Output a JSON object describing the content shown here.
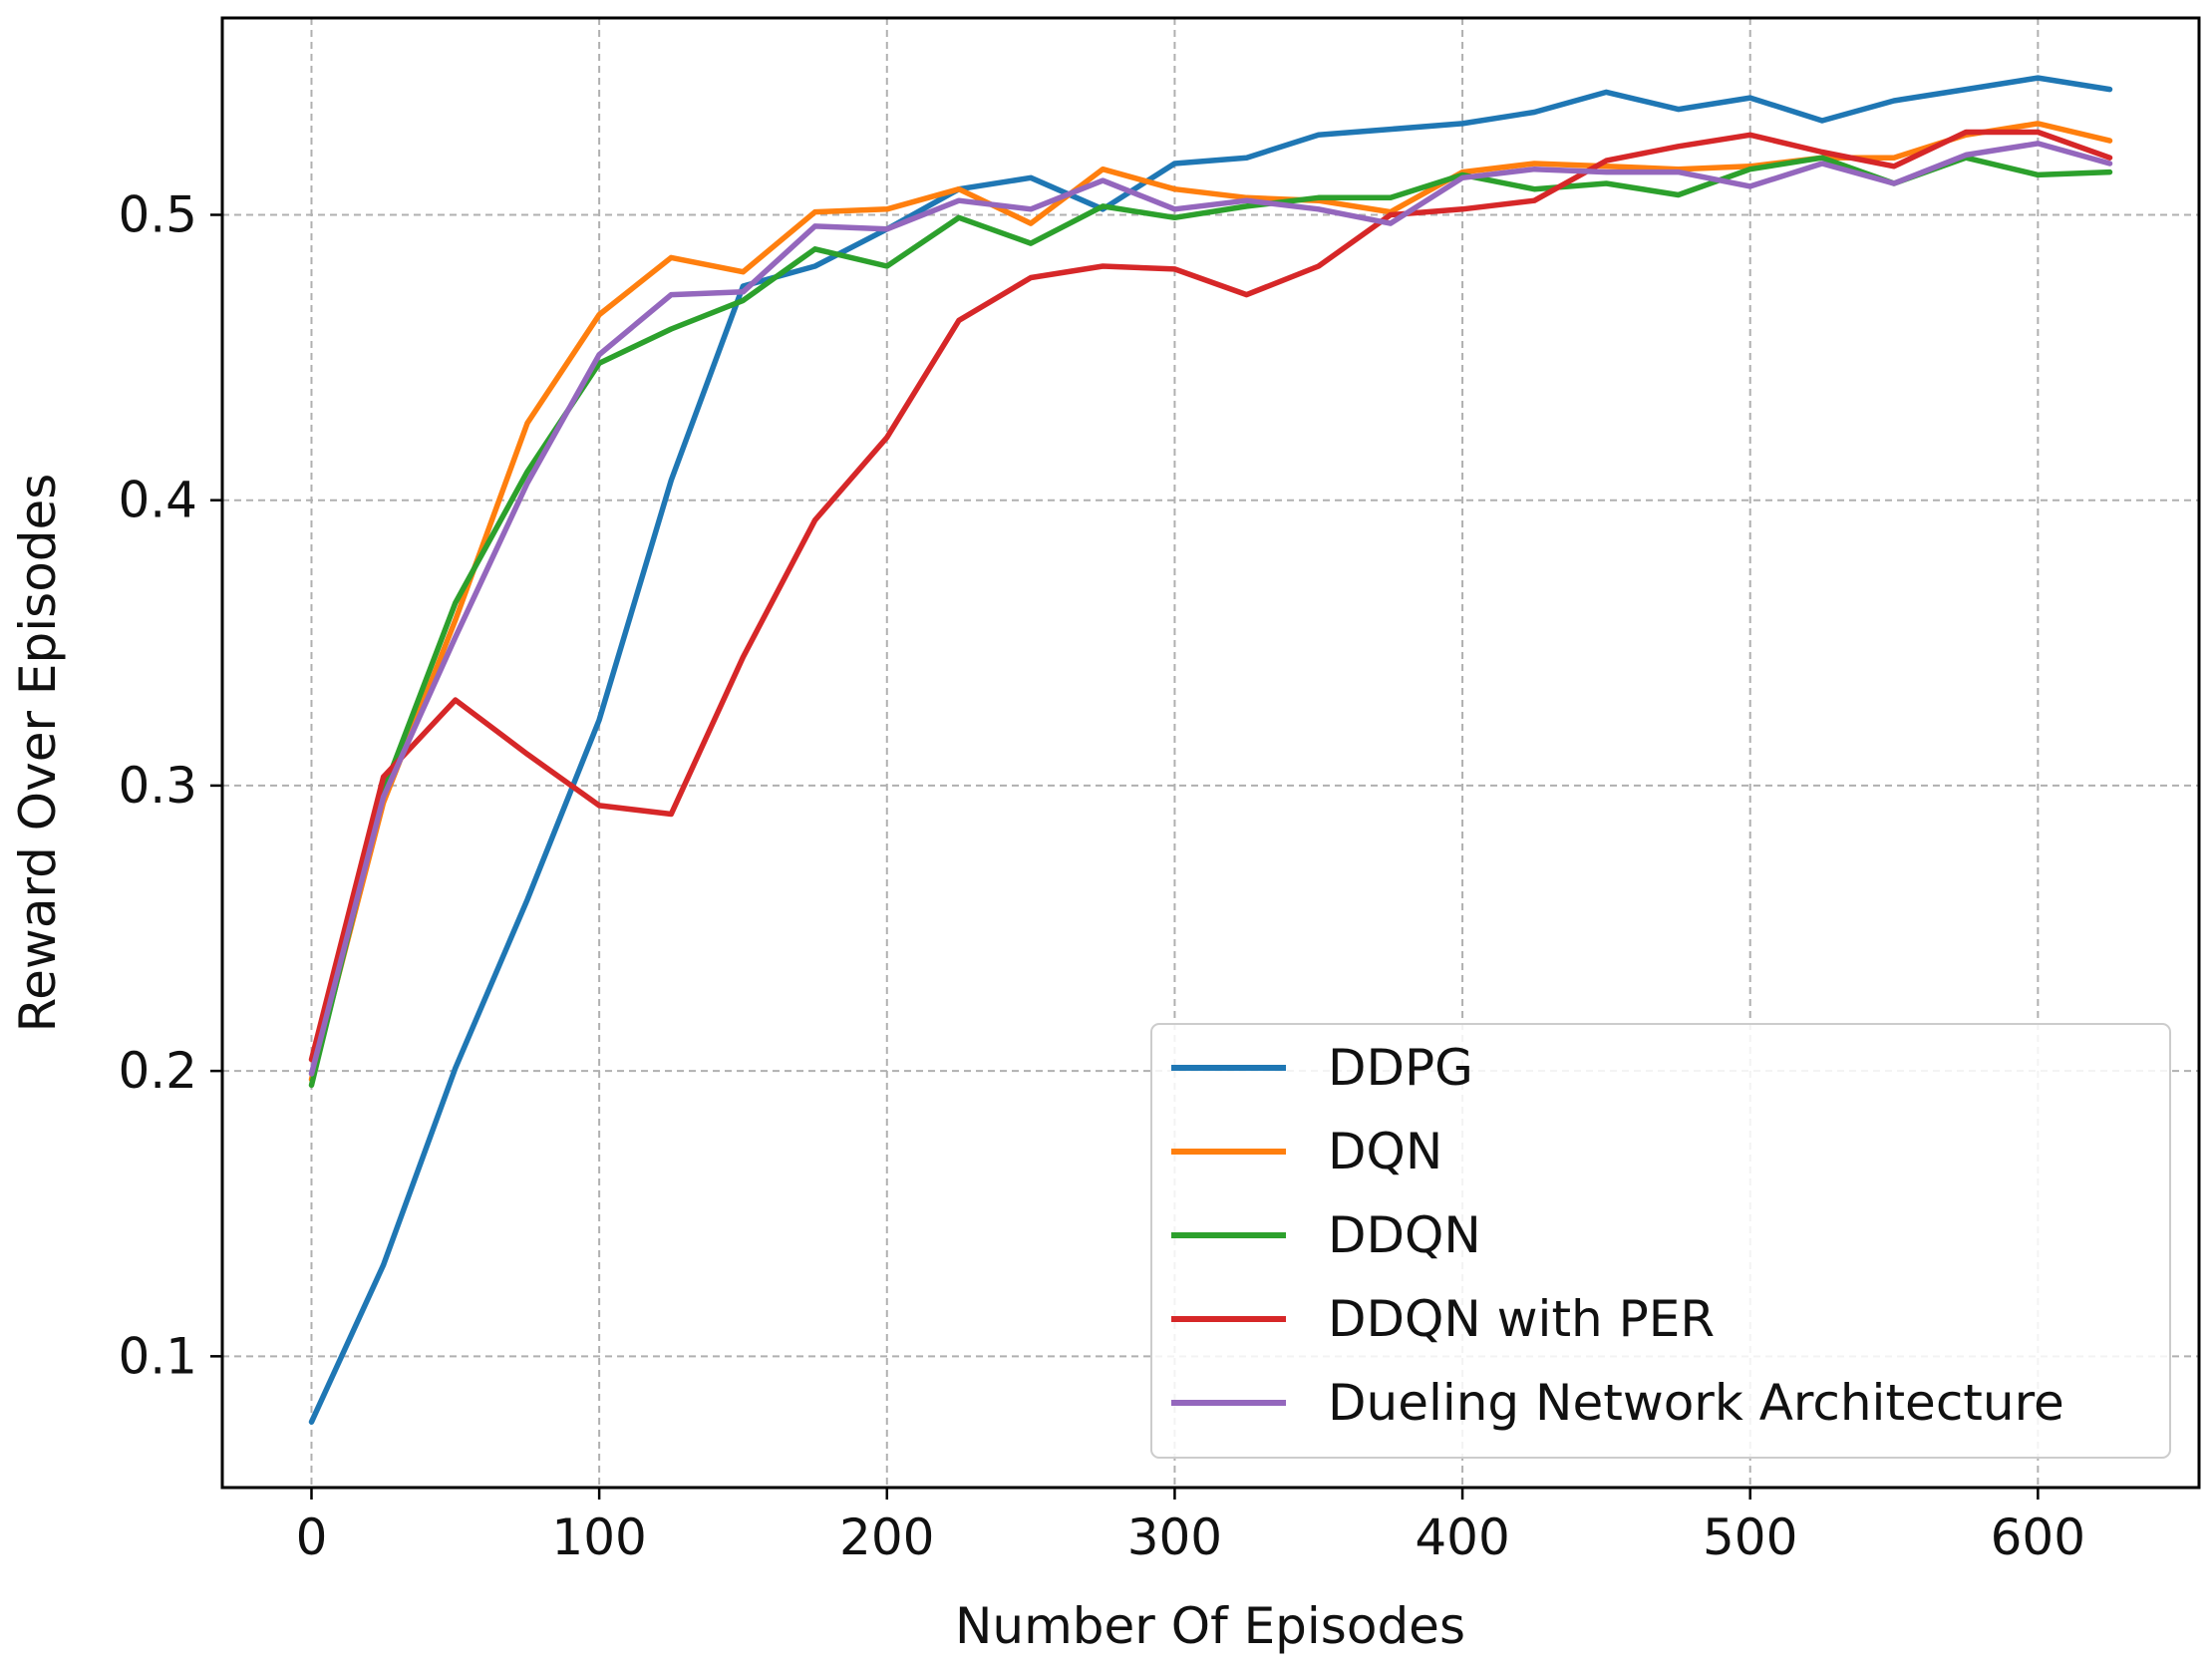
{
  "chart_data": {
    "type": "line",
    "title": "",
    "xlabel": "Number Of Episodes",
    "ylabel": "Reward Over Episodes",
    "xlim": [
      -31,
      656
    ],
    "ylim": [
      0.054,
      0.569
    ],
    "xticks": [
      0,
      100,
      200,
      300,
      400,
      500,
      600
    ],
    "xtick_labels": [
      "0",
      "100",
      "200",
      "300",
      "400",
      "500",
      "600"
    ],
    "yticks": [
      0.1,
      0.2,
      0.3,
      0.4,
      0.5
    ],
    "ytick_labels": [
      "0.1",
      "0.2",
      "0.3",
      "0.4",
      "0.5"
    ],
    "grid": true,
    "legend_position": "lower-right",
    "x": [
      0,
      25,
      50,
      75,
      100,
      125,
      150,
      175,
      200,
      225,
      250,
      275,
      300,
      325,
      350,
      375,
      400,
      425,
      450,
      475,
      500,
      525,
      550,
      575,
      600,
      625
    ],
    "series": [
      {
        "name": "DDPG",
        "color": "#1f77b4",
        "values": [
          0.077,
          0.132,
          0.201,
          0.26,
          0.323,
          0.407,
          0.475,
          0.482,
          0.495,
          0.509,
          0.513,
          0.502,
          0.518,
          0.52,
          0.528,
          0.53,
          0.532,
          0.536,
          0.543,
          0.537,
          0.541,
          0.533,
          0.54,
          0.544,
          0.548,
          0.544
        ]
      },
      {
        "name": "DQN",
        "color": "#ff7f0e",
        "values": [
          0.197,
          0.294,
          0.358,
          0.427,
          0.465,
          0.485,
          0.48,
          0.501,
          0.502,
          0.509,
          0.497,
          0.516,
          0.509,
          0.506,
          0.505,
          0.501,
          0.515,
          0.518,
          0.517,
          0.516,
          0.517,
          0.52,
          0.52,
          0.528,
          0.532,
          0.526
        ]
      },
      {
        "name": "DDQN",
        "color": "#2ca02c",
        "values": [
          0.195,
          0.298,
          0.364,
          0.41,
          0.448,
          0.46,
          0.47,
          0.488,
          0.482,
          0.499,
          0.49,
          0.503,
          0.499,
          0.503,
          0.506,
          0.506,
          0.514,
          0.509,
          0.511,
          0.507,
          0.516,
          0.52,
          0.511,
          0.52,
          0.514,
          0.515
        ]
      },
      {
        "name": "DDQN with PER",
        "color": "#d62728",
        "values": [
          0.204,
          0.303,
          0.33,
          0.311,
          0.293,
          0.29,
          0.345,
          0.393,
          0.422,
          0.463,
          0.478,
          0.482,
          0.481,
          0.472,
          0.482,
          0.5,
          0.502,
          0.505,
          0.519,
          0.524,
          0.528,
          0.522,
          0.517,
          0.529,
          0.529,
          0.52
        ]
      },
      {
        "name": "Dueling Network Architecture",
        "color": "#9467bd",
        "values": [
          0.199,
          0.296,
          0.352,
          0.406,
          0.451,
          0.472,
          0.473,
          0.496,
          0.495,
          0.505,
          0.502,
          0.512,
          0.502,
          0.505,
          0.502,
          0.497,
          0.513,
          0.516,
          0.515,
          0.515,
          0.51,
          0.518,
          0.511,
          0.521,
          0.525,
          0.518
        ]
      }
    ]
  }
}
